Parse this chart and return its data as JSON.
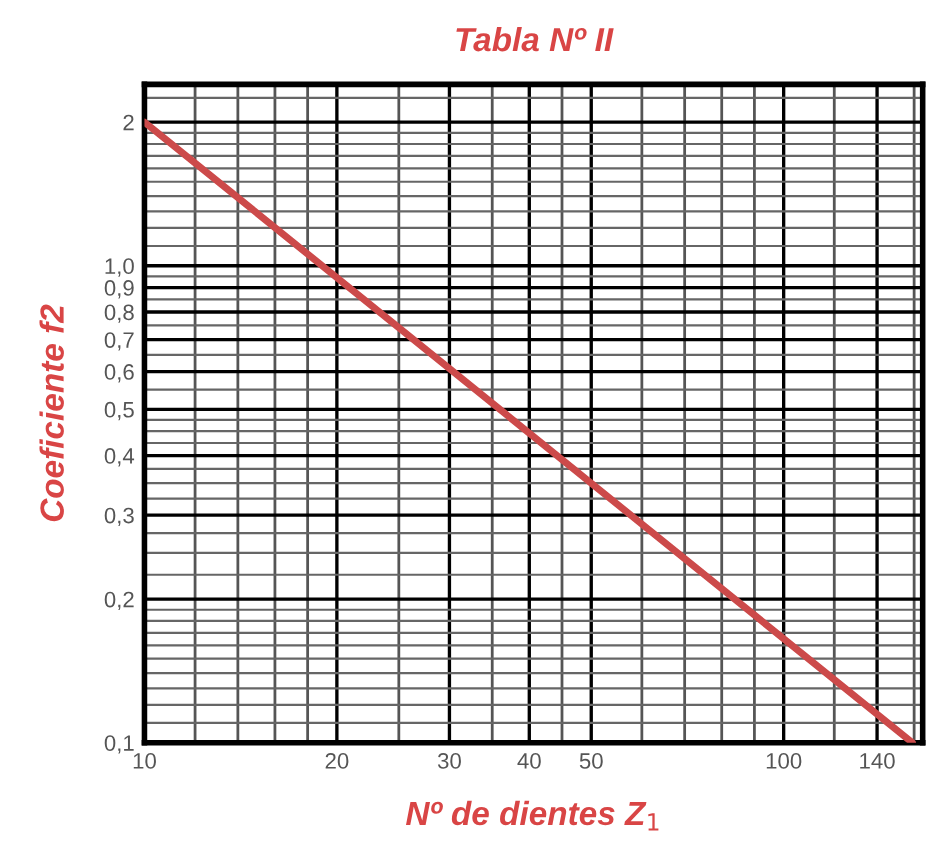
{
  "chart_data": {
    "type": "line",
    "title": "Tabla Nº II",
    "xlabel": "Nº de dientes Z$_{1}$",
    "ylabel": "Coeficiente f2",
    "log": "xy",
    "grid": true,
    "marker": "none",
    "line_style": "solid",
    "x": [
      10,
      159
    ],
    "series": [
      {
        "color": "#cc4a4a",
        "values": [
          2,
          0.1
        ]
      }
    ],
    "xlim": [
      10,
      165
    ],
    "ylim": [
      0.1,
      2.4
    ],
    "xticks": [
      10,
      20,
      30,
      40,
      50,
      100,
      140
    ],
    "yticks": [
      {
        "value": 0.1,
        "label": "0,1"
      },
      {
        "value": 0.2,
        "label": "0,2"
      },
      {
        "value": 0.3,
        "label": "0,3"
      },
      {
        "value": 0.4,
        "label": "0,4"
      },
      {
        "value": 0.5,
        "label": "0,5"
      },
      {
        "value": 0.6,
        "label": "0,6"
      },
      {
        "value": 0.7,
        "label": "0,7"
      },
      {
        "value": 0.8,
        "label": "0,8"
      },
      {
        "value": 0.9,
        "label": "0,9"
      },
      {
        "value": 1.0,
        "label": "1,0"
      },
      2
    ]
  }
}
